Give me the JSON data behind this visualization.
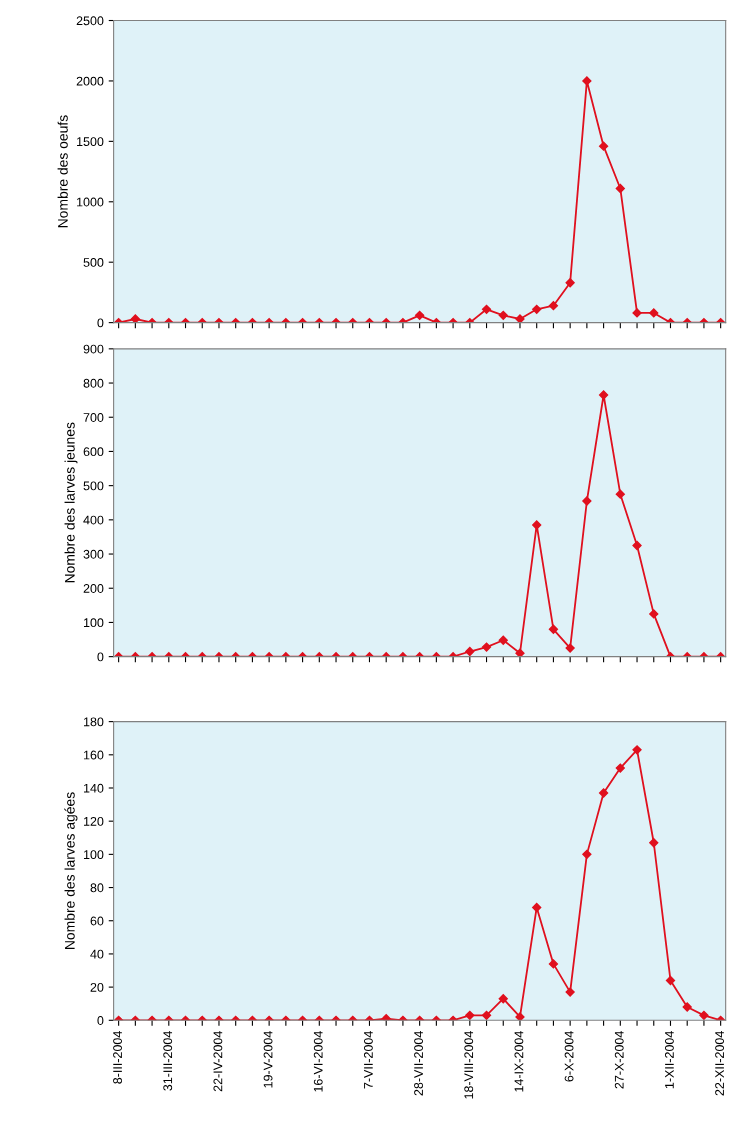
{
  "chart_data": [
    {
      "type": "line",
      "ylabel": "Nombre des oeufs",
      "categories": [
        null,
        null,
        null,
        null,
        null,
        null,
        null,
        null,
        null,
        null,
        null,
        null,
        null,
        null,
        null,
        null,
        null,
        null,
        null,
        null,
        null,
        null,
        null,
        null,
        null,
        null,
        null,
        null,
        null,
        null,
        null,
        null,
        null,
        null,
        null,
        null,
        null
      ],
      "series": [
        {
          "color": "#e0101e",
          "values": [
            0,
            30,
            0,
            0,
            0,
            0,
            0,
            0,
            0,
            0,
            0,
            0,
            0,
            0,
            0,
            0,
            0,
            0,
            60,
            0,
            0,
            0,
            110,
            60,
            30,
            110,
            140,
            330,
            2000,
            1460,
            1110,
            80,
            80,
            0,
            0,
            0,
            0
          ]
        }
      ],
      "ylim": [
        0,
        2500
      ],
      "yticks": [
        0,
        500,
        1000,
        1500,
        2000,
        2500
      ],
      "marker": "diamond",
      "grid": false,
      "legend": false,
      "tick_labels": "y"
    },
    {
      "type": "line",
      "ylabel": "Nombre des larves jeunes",
      "categories": [
        null,
        null,
        null,
        null,
        null,
        null,
        null,
        null,
        null,
        null,
        null,
        null,
        null,
        null,
        null,
        null,
        null,
        null,
        null,
        null,
        null,
        null,
        null,
        null,
        null,
        null,
        null,
        null,
        null,
        null,
        null,
        null,
        null,
        null,
        null,
        null,
        null
      ],
      "series": [
        {
          "color": "#e0101e",
          "values": [
            0,
            0,
            0,
            0,
            0,
            0,
            0,
            0,
            0,
            0,
            0,
            0,
            0,
            0,
            0,
            0,
            0,
            0,
            0,
            0,
            0,
            15,
            28,
            48,
            10,
            385,
            80,
            25,
            455,
            765,
            475,
            325,
            125,
            0,
            0,
            0,
            0
          ]
        }
      ],
      "ylim": [
        0,
        900
      ],
      "yticks": [
        0,
        100,
        200,
        300,
        400,
        500,
        600,
        700,
        800,
        900
      ],
      "marker": "diamond",
      "grid": false,
      "legend": false,
      "tick_labels": "y"
    },
    {
      "type": "line",
      "ylabel": "Nombre des larves agées",
      "categories": [
        "8-III-2004",
        null,
        null,
        "31-III-2004",
        null,
        null,
        "22-IV-2004",
        null,
        null,
        "19-V-2004",
        null,
        null,
        "16-VI-2004",
        null,
        null,
        "7-VII-2004",
        null,
        null,
        "28-VII-2004",
        null,
        null,
        "18-VIII-2004",
        null,
        null,
        "14-IX-2004",
        null,
        null,
        "6-X-2004",
        null,
        null,
        "27-X-2004",
        null,
        null,
        "1-XII-2004",
        null,
        null,
        "22-XII-2004"
      ],
      "series": [
        {
          "color": "#e0101e",
          "values": [
            0,
            0,
            0,
            0,
            0,
            0,
            0,
            0,
            0,
            0,
            0,
            0,
            0,
            0,
            0,
            0,
            1,
            0,
            0,
            0,
            0,
            3,
            3,
            13,
            2,
            68,
            34,
            17,
            100,
            137,
            152,
            163,
            107,
            24,
            8,
            3,
            0
          ]
        }
      ],
      "ylim": [
        0,
        180
      ],
      "yticks": [
        0,
        20,
        40,
        60,
        80,
        100,
        120,
        140,
        160,
        180
      ],
      "marker": "diamond",
      "grid": false,
      "legend": false
    }
  ]
}
